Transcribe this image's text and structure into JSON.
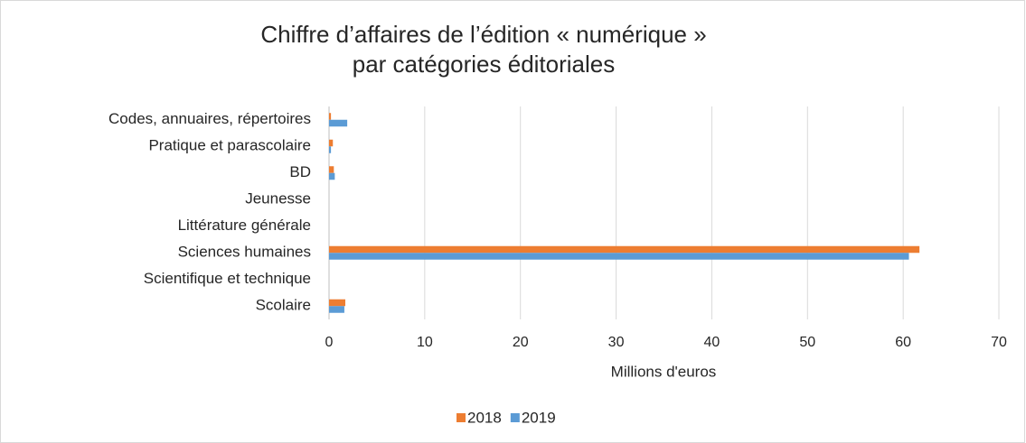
{
  "chart_data": {
    "type": "bar",
    "orientation": "horizontal",
    "title": [
      "Chiffre d’affaires de l’édition « numérique »",
      "par catégories éditoriales"
    ],
    "xlabel": "Millions d'euros",
    "categories": [
      "Codes, annuaires, répertoires",
      "Pratique et parascolaire",
      "BD",
      "Jeunesse",
      "Littérature générale",
      "Sciences humaines",
      "Scientifique et technique",
      "Scolaire"
    ],
    "series": [
      {
        "name": "2018",
        "color": "#ed7d31",
        "values": [
          0.2,
          0.4,
          0.5,
          0,
          0,
          61.7,
          0,
          1.7
        ]
      },
      {
        "name": "2019",
        "color": "#5b9bd5",
        "values": [
          1.9,
          0.2,
          0.6,
          0,
          0,
          60.6,
          0,
          1.6
        ]
      }
    ],
    "xlim": [
      0,
      70
    ],
    "xticks": [
      0,
      10,
      20,
      30,
      40,
      50,
      60,
      70
    ],
    "grid": true,
    "legend": "bottom"
  }
}
